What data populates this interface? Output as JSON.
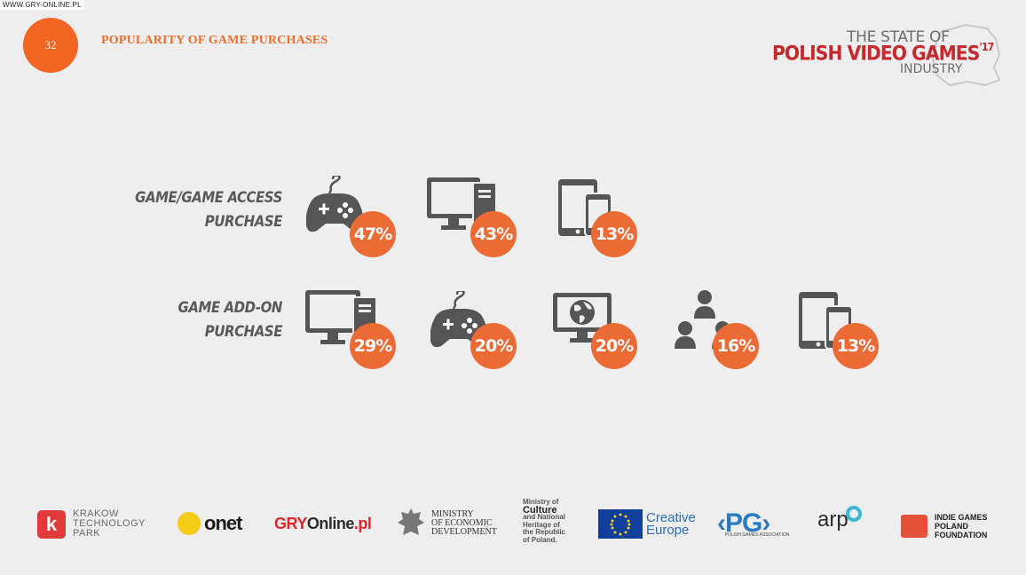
{
  "watermark": "WWW.GRY-ONLINE.PL",
  "page_number": "32",
  "title": "POPULARITY OF GAME PURCHASES",
  "brand": {
    "line1": "THE STATE OF",
    "line2": "POLISH VIDEO GAMES",
    "year": "'17",
    "line3": "INDUSTRY"
  },
  "rows": [
    {
      "label_line1": "GAME/GAME ACCESS",
      "label_line2": "PURCHASE",
      "items": [
        {
          "icon": "gamepad-icon",
          "value": "47%"
        },
        {
          "icon": "desktop-computer-icon",
          "value": "43%"
        },
        {
          "icon": "mobile-devices-icon",
          "value": "13%"
        }
      ]
    },
    {
      "label_line1": "GAME ADD-ON",
      "label_line2": "PURCHASE",
      "items": [
        {
          "icon": "desktop-computer-icon",
          "value": "29%"
        },
        {
          "icon": "gamepad-icon",
          "value": "20%"
        },
        {
          "icon": "web-browser-globe-icon",
          "value": "20%"
        },
        {
          "icon": "people-network-icon",
          "value": "16%"
        },
        {
          "icon": "mobile-devices-icon",
          "value": "13%"
        }
      ]
    }
  ],
  "colors": {
    "accent": "#ec6a34",
    "icon": "#555555",
    "background": "#efeeee",
    "brand_red": "#c5282d"
  },
  "partners": {
    "ktp": {
      "letter": "k",
      "line1": "KRAKOW",
      "line2": "TECHNOLOGY",
      "line3": "PARK"
    },
    "onet": "onet",
    "gry": {
      "part1": "GRY",
      "part2": "Online",
      "part3": ".pl"
    },
    "ministry_econ": {
      "line1": "MINISTRY",
      "line2": "OF ECONOMIC",
      "line3": "DEVELOPMENT"
    },
    "ministry_culture": {
      "line1": "Ministry of",
      "line2": "Culture",
      "line3": "and National",
      "line4": "Heritage of",
      "line5": "the Republic",
      "line6": "of Poland."
    },
    "creative_europe": {
      "line1": "Creative",
      "line2": "Europe"
    },
    "pg": {
      "mark": "‹PG›",
      "sub": "POLISH GAMES ASSOCIATION"
    },
    "arp": "arp",
    "igpf": {
      "line1": "INDIE GAMES",
      "line2": "POLAND",
      "line3": "FOUNDATION"
    }
  }
}
